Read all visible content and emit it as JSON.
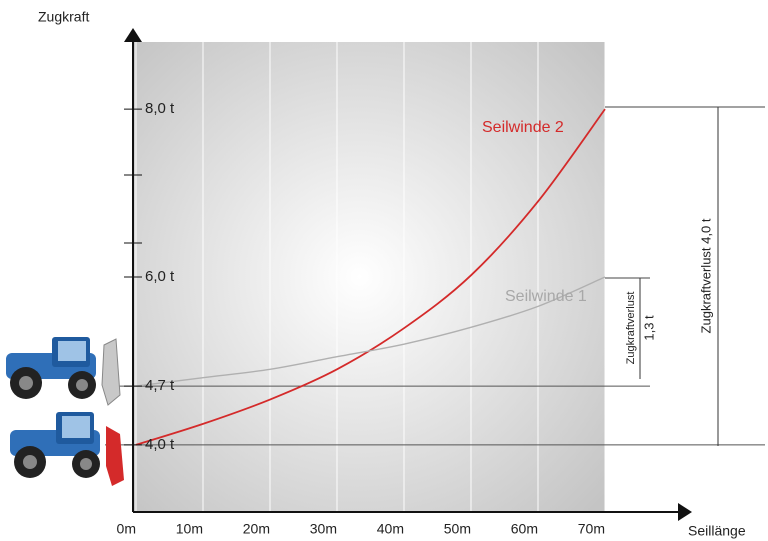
{
  "chart_data": {
    "type": "line",
    "x_label": "Seillänge",
    "y_label": "Zugkraft",
    "x": [
      0,
      10,
      20,
      30,
      40,
      50,
      60,
      70
    ],
    "xlim": [
      0,
      70
    ],
    "xticks": [
      {
        "value": 0,
        "label": "0m"
      },
      {
        "value": 10,
        "label": "10m"
      },
      {
        "value": 20,
        "label": "20m"
      },
      {
        "value": 30,
        "label": "30m"
      },
      {
        "value": 40,
        "label": "40m"
      },
      {
        "value": 50,
        "label": "50m"
      },
      {
        "value": 60,
        "label": "60m"
      },
      {
        "value": 70,
        "label": "70m"
      }
    ],
    "ylim": [
      3.2,
      8.8
    ],
    "yticks": [
      {
        "value": 4.0,
        "label": "4,0 t"
      },
      {
        "value": 4.7,
        "label": "4,7 t"
      },
      {
        "value": 6.0,
        "label": "6,0 t"
      },
      {
        "value": 8.0,
        "label": "8,0 t"
      }
    ],
    "series": [
      {
        "name": "Seilwinde 2",
        "color": "#d42a2a",
        "values": [
          4.0,
          4.25,
          4.54,
          4.9,
          5.39,
          6.02,
          6.9,
          8.0
        ]
      },
      {
        "name": "Seilwinde 1",
        "color": "#b0b0b0",
        "values": [
          4.7,
          4.8,
          4.9,
          5.05,
          5.2,
          5.4,
          5.65,
          6.0
        ]
      }
    ],
    "annotations": [
      "Zugkraftverlust",
      "1,3 t",
      "Zugkraftverlust 4,0 t"
    ],
    "grid": true
  }
}
